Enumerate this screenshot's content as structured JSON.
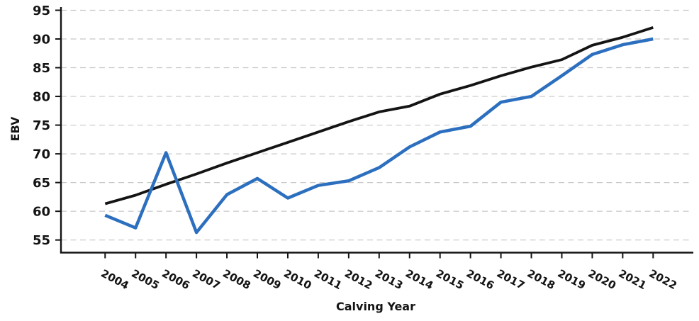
{
  "chart_data": {
    "type": "line",
    "title": "",
    "xlabel": "Calving Year",
    "ylabel": "EBV",
    "x": [
      2004,
      2005,
      2006,
      2007,
      2008,
      2009,
      2010,
      2011,
      2012,
      2013,
      2014,
      2015,
      2016,
      2017,
      2018,
      2019,
      2020,
      2021,
      2022
    ],
    "series": [
      {
        "name": "black-trend-line",
        "color": "#141414",
        "stroke_width": 3.8,
        "values": [
          61.3,
          62.8,
          64.7,
          66.5,
          68.4,
          70.2,
          72.0,
          73.8,
          75.6,
          77.3,
          78.3,
          80.4,
          81.9,
          83.6,
          85.1,
          86.4,
          88.9,
          90.3,
          92.0
        ]
      },
      {
        "name": "blue-trend-line",
        "color": "#2c6fbf",
        "stroke_width": 4.5,
        "values": [
          59.3,
          57.1,
          70.2,
          56.3,
          62.9,
          65.7,
          62.3,
          64.5,
          65.3,
          67.6,
          71.2,
          73.8,
          74.8,
          79.0,
          80.0,
          83.6,
          87.3,
          89.0,
          90.0
        ]
      }
    ],
    "yticks": [
      55,
      60,
      65,
      70,
      75,
      80,
      85,
      90,
      95
    ],
    "ylim": [
      52.8,
      95.8
    ],
    "xlim_years": [
      2002.55,
      2023.25
    ],
    "grid": "horizontal-dashed",
    "legend": "none",
    "gridline_color": "#c8c8c8",
    "axis_color": "#141414",
    "text_color": "#141414",
    "background_color": "#ffffff"
  }
}
